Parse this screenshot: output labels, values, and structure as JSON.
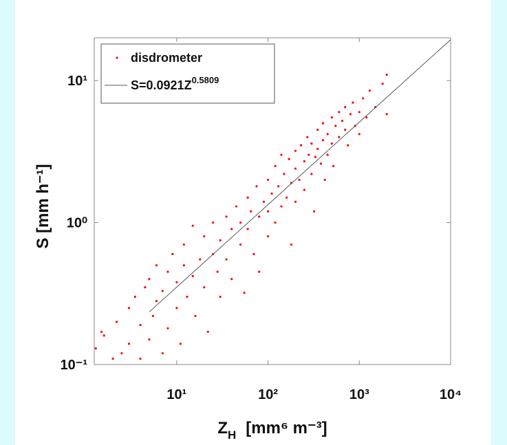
{
  "chart_data": {
    "type": "scatter",
    "xlabel": {
      "text": "Z",
      "sub": "H",
      "unit": "[mm⁶ m⁻³]"
    },
    "ylabel": "S  [mm h⁻¹]",
    "xscale": "log",
    "yscale": "log",
    "grid": false,
    "legend_position": "upper-left",
    "xlim": [
      1.25,
      10000
    ],
    "xticks": [
      {
        "value": 10,
        "label": "10¹"
      },
      {
        "value": 100,
        "label": "10²"
      },
      {
        "value": 1000,
        "label": "10³"
      },
      {
        "value": 10000,
        "label": "10⁴"
      }
    ],
    "ylim": [
      0.1,
      20
    ],
    "yticks": [
      {
        "value": 0.1,
        "label": "10⁻¹"
      },
      {
        "value": 1,
        "label": "10⁰"
      },
      {
        "value": 10,
        "label": "10¹"
      }
    ],
    "series": [
      {
        "name": "disdrometer",
        "color": "#ff0000",
        "x": [
          1.3,
          1.5,
          1.6,
          2,
          2.2,
          2.5,
          3,
          3,
          3.5,
          4,
          4,
          4.5,
          5,
          5,
          5.5,
          6,
          6,
          7,
          7,
          8,
          8,
          9,
          10,
          10,
          11,
          12,
          12,
          13,
          15,
          15,
          16,
          18,
          20,
          20,
          22,
          25,
          25,
          28,
          30,
          30,
          35,
          35,
          40,
          40,
          45,
          50,
          50,
          55,
          60,
          60,
          65,
          70,
          75,
          80,
          80,
          90,
          100,
          100,
          100,
          110,
          120,
          120,
          130,
          140,
          140,
          150,
          160,
          170,
          180,
          180,
          200,
          200,
          200,
          220,
          230,
          250,
          250,
          270,
          280,
          300,
          300,
          320,
          330,
          350,
          350,
          380,
          400,
          400,
          420,
          450,
          450,
          500,
          500,
          520,
          550,
          600,
          600,
          650,
          700,
          700,
          750,
          800,
          850,
          900,
          1000,
          1000,
          1100,
          1200,
          1300,
          1500,
          1800,
          2000,
          2000
        ],
        "values": [
          0.13,
          0.17,
          0.16,
          0.11,
          0.2,
          0.12,
          0.25,
          0.14,
          0.3,
          0.11,
          0.19,
          0.35,
          0.15,
          0.4,
          0.22,
          0.28,
          0.5,
          0.12,
          0.33,
          0.18,
          0.45,
          0.6,
          0.25,
          0.38,
          0.14,
          0.5,
          0.7,
          0.3,
          0.42,
          0.95,
          0.22,
          0.55,
          0.35,
          0.8,
          0.17,
          0.6,
          1.0,
          0.45,
          0.3,
          0.75,
          1.1,
          0.55,
          0.9,
          0.4,
          1.3,
          0.7,
          1.0,
          0.32,
          1.5,
          0.9,
          1.2,
          0.6,
          1.8,
          1.1,
          0.45,
          1.4,
          2.0,
          1.2,
          0.8,
          1.6,
          2.5,
          1.0,
          1.8,
          3.0,
          1.3,
          2.2,
          1.5,
          2.8,
          0.7,
          1.9,
          3.2,
          2.4,
          1.4,
          2.0,
          3.5,
          2.7,
          1.7,
          4.0,
          3.0,
          2.2,
          3.6,
          1.2,
          2.9,
          4.5,
          3.3,
          2.6,
          3.8,
          5.0,
          2.0,
          3.0,
          4.2,
          5.5,
          3.6,
          2.5,
          4.8,
          4.0,
          6.0,
          5.2,
          4.5,
          6.5,
          3.5,
          5.8,
          7.0,
          4.8,
          6.0,
          4.2,
          7.5,
          5.5,
          8.5,
          6.5,
          9.5,
          11.0,
          5.8
        ]
      }
    ],
    "fit": {
      "name": "S=0.0921Z",
      "coefficient": 0.0921,
      "exponent": 0.5809,
      "xrange": [
        5,
        10000
      ],
      "color": "#555555"
    }
  }
}
